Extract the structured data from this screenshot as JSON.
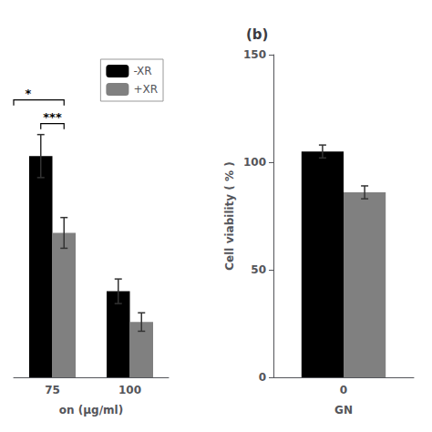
{
  "chart_data": [
    {
      "type": "bar",
      "xlabel": "on (μg/ml)",
      "categories": [
        "75",
        "100"
      ],
      "series": [
        {
          "name": "-XR",
          "color": "#000000",
          "values": [
            72,
            28
          ],
          "errors": [
            7,
            4
          ]
        },
        {
          "name": "+XR",
          "color": "#808080",
          "values": [
            47,
            18
          ],
          "errors": [
            5,
            3
          ]
        }
      ],
      "ylim": [
        0,
        105
      ],
      "tick_labels": "x",
      "legend": "upper right",
      "grid": false,
      "annotations": [
        "***",
        "*"
      ]
    },
    {
      "type": "bar",
      "title": "(b)",
      "xlabel": "GN",
      "ylabel": "Cell viability ( % )",
      "categories": [
        "0"
      ],
      "series": [
        {
          "name": "-XR",
          "color": "#000000",
          "values": [
            105
          ],
          "errors": [
            3
          ]
        },
        {
          "name": "+XR",
          "color": "#808080",
          "values": [
            86
          ],
          "errors": [
            3
          ]
        }
      ],
      "ylim": [
        0,
        150
      ],
      "yticks": [
        0,
        50,
        100,
        150
      ],
      "grid": false
    }
  ]
}
